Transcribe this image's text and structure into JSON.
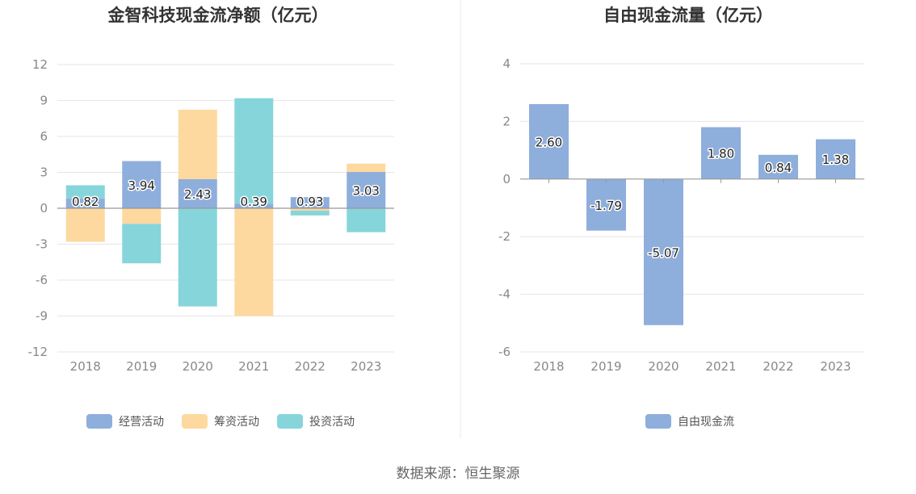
{
  "source_label": "数据来源：恒生聚源",
  "chart_data": [
    {
      "type": "bar",
      "title": "金智科技现金流净额（亿元）",
      "categories": [
        "2018",
        "2019",
        "2020",
        "2021",
        "2022",
        "2023"
      ],
      "ylim": [
        -12,
        12
      ],
      "yticks": [
        -12,
        -9,
        -6,
        -3,
        0,
        3,
        6,
        9,
        12
      ],
      "grid": true,
      "legend_position": "bottom",
      "series": [
        {
          "name": "经营活动",
          "color": "#8eaedc",
          "values": [
            0.82,
            3.94,
            2.43,
            0.39,
            0.93,
            3.03
          ],
          "labels": [
            "0.82",
            "3.94",
            "2.43",
            "0.39",
            "0.93",
            "3.03"
          ]
        },
        {
          "name": "筹资活动",
          "color": "#fdd99f",
          "values": [
            -2.8,
            -1.3,
            5.8,
            -9.0,
            -0.2,
            0.7
          ]
        },
        {
          "name": "投资活动",
          "color": "#86d5db",
          "values": [
            1.1,
            -3.3,
            -8.2,
            8.8,
            -0.4,
            -2.0
          ]
        }
      ]
    },
    {
      "type": "bar",
      "title": "自由现金流量（亿元）",
      "categories": [
        "2018",
        "2019",
        "2020",
        "2021",
        "2022",
        "2023"
      ],
      "ylim": [
        -6,
        4
      ],
      "yticks": [
        -6,
        -4,
        -2,
        0,
        2,
        4
      ],
      "grid": true,
      "legend_position": "bottom",
      "series": [
        {
          "name": "自由现金流",
          "color": "#8eaedc",
          "values": [
            2.6,
            -1.79,
            -5.07,
            1.8,
            0.84,
            1.38
          ],
          "labels": [
            "2.60",
            "-1.79",
            "-5.07",
            "1.80",
            "0.84",
            "1.38"
          ]
        }
      ]
    }
  ]
}
